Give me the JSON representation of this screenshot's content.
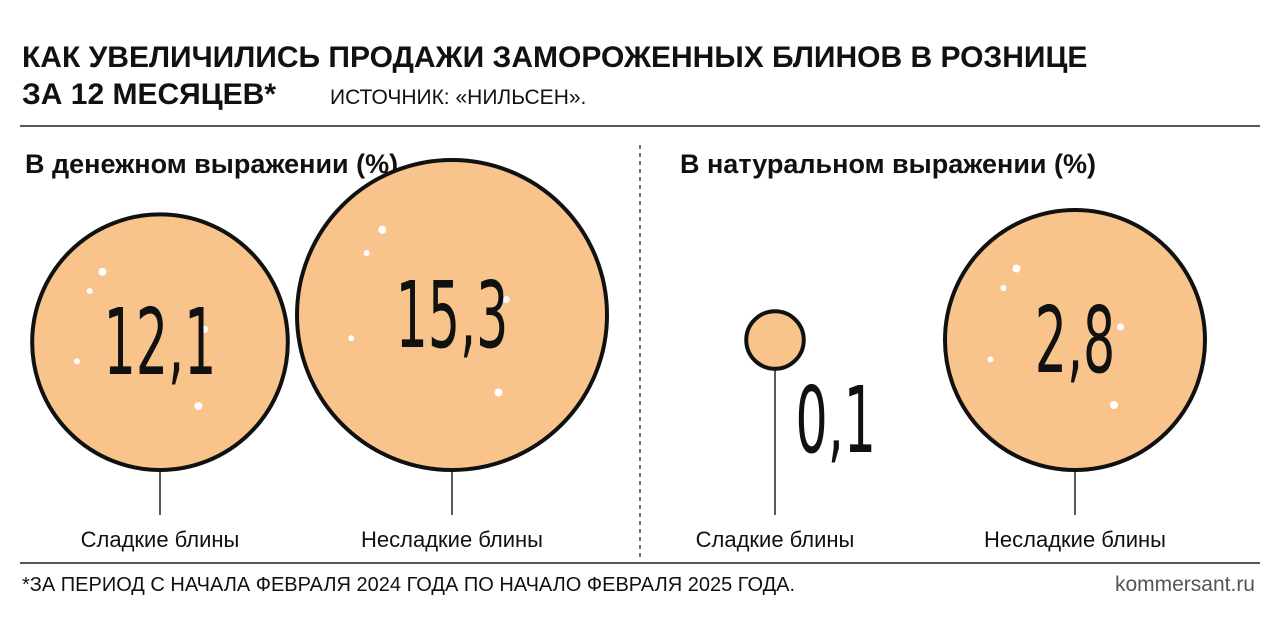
{
  "title": [
    "КАК УВЕЛИЧИЛИСЬ ПРОДАЖИ ЗАМОРОЖЕННЫХ БЛИНОВ В РОЗНИЦЕ",
    "ЗА 12 МЕСЯЦЕВ*"
  ],
  "source": "ИСТОЧНИК: «НИЛЬСЕН».",
  "footnote": "*ЗА ПЕРИОД С НАЧАЛА ФЕВРАЛЯ 2024 ГОДА ПО НАЧАЛО ФЕВРАЛЯ 2025 ГОДА.",
  "credit": "kommersant.ru",
  "chart_data": [
    {
      "type": "bubble",
      "title": "В денежном выражении (%)",
      "categories": [
        "Сладкие блины",
        "Несладкие блины"
      ],
      "values": [
        12.1,
        15.3
      ],
      "value_labels": [
        "12,1",
        "15,3"
      ],
      "color": "#f8c48b"
    },
    {
      "type": "bubble",
      "title": "В натуральном выражении (%)",
      "categories": [
        "Сладкие блины",
        "Несладкие блины"
      ],
      "values": [
        0.1,
        2.8
      ],
      "value_labels": [
        "0,1",
        "2,8"
      ],
      "color": "#f8c48b"
    }
  ]
}
